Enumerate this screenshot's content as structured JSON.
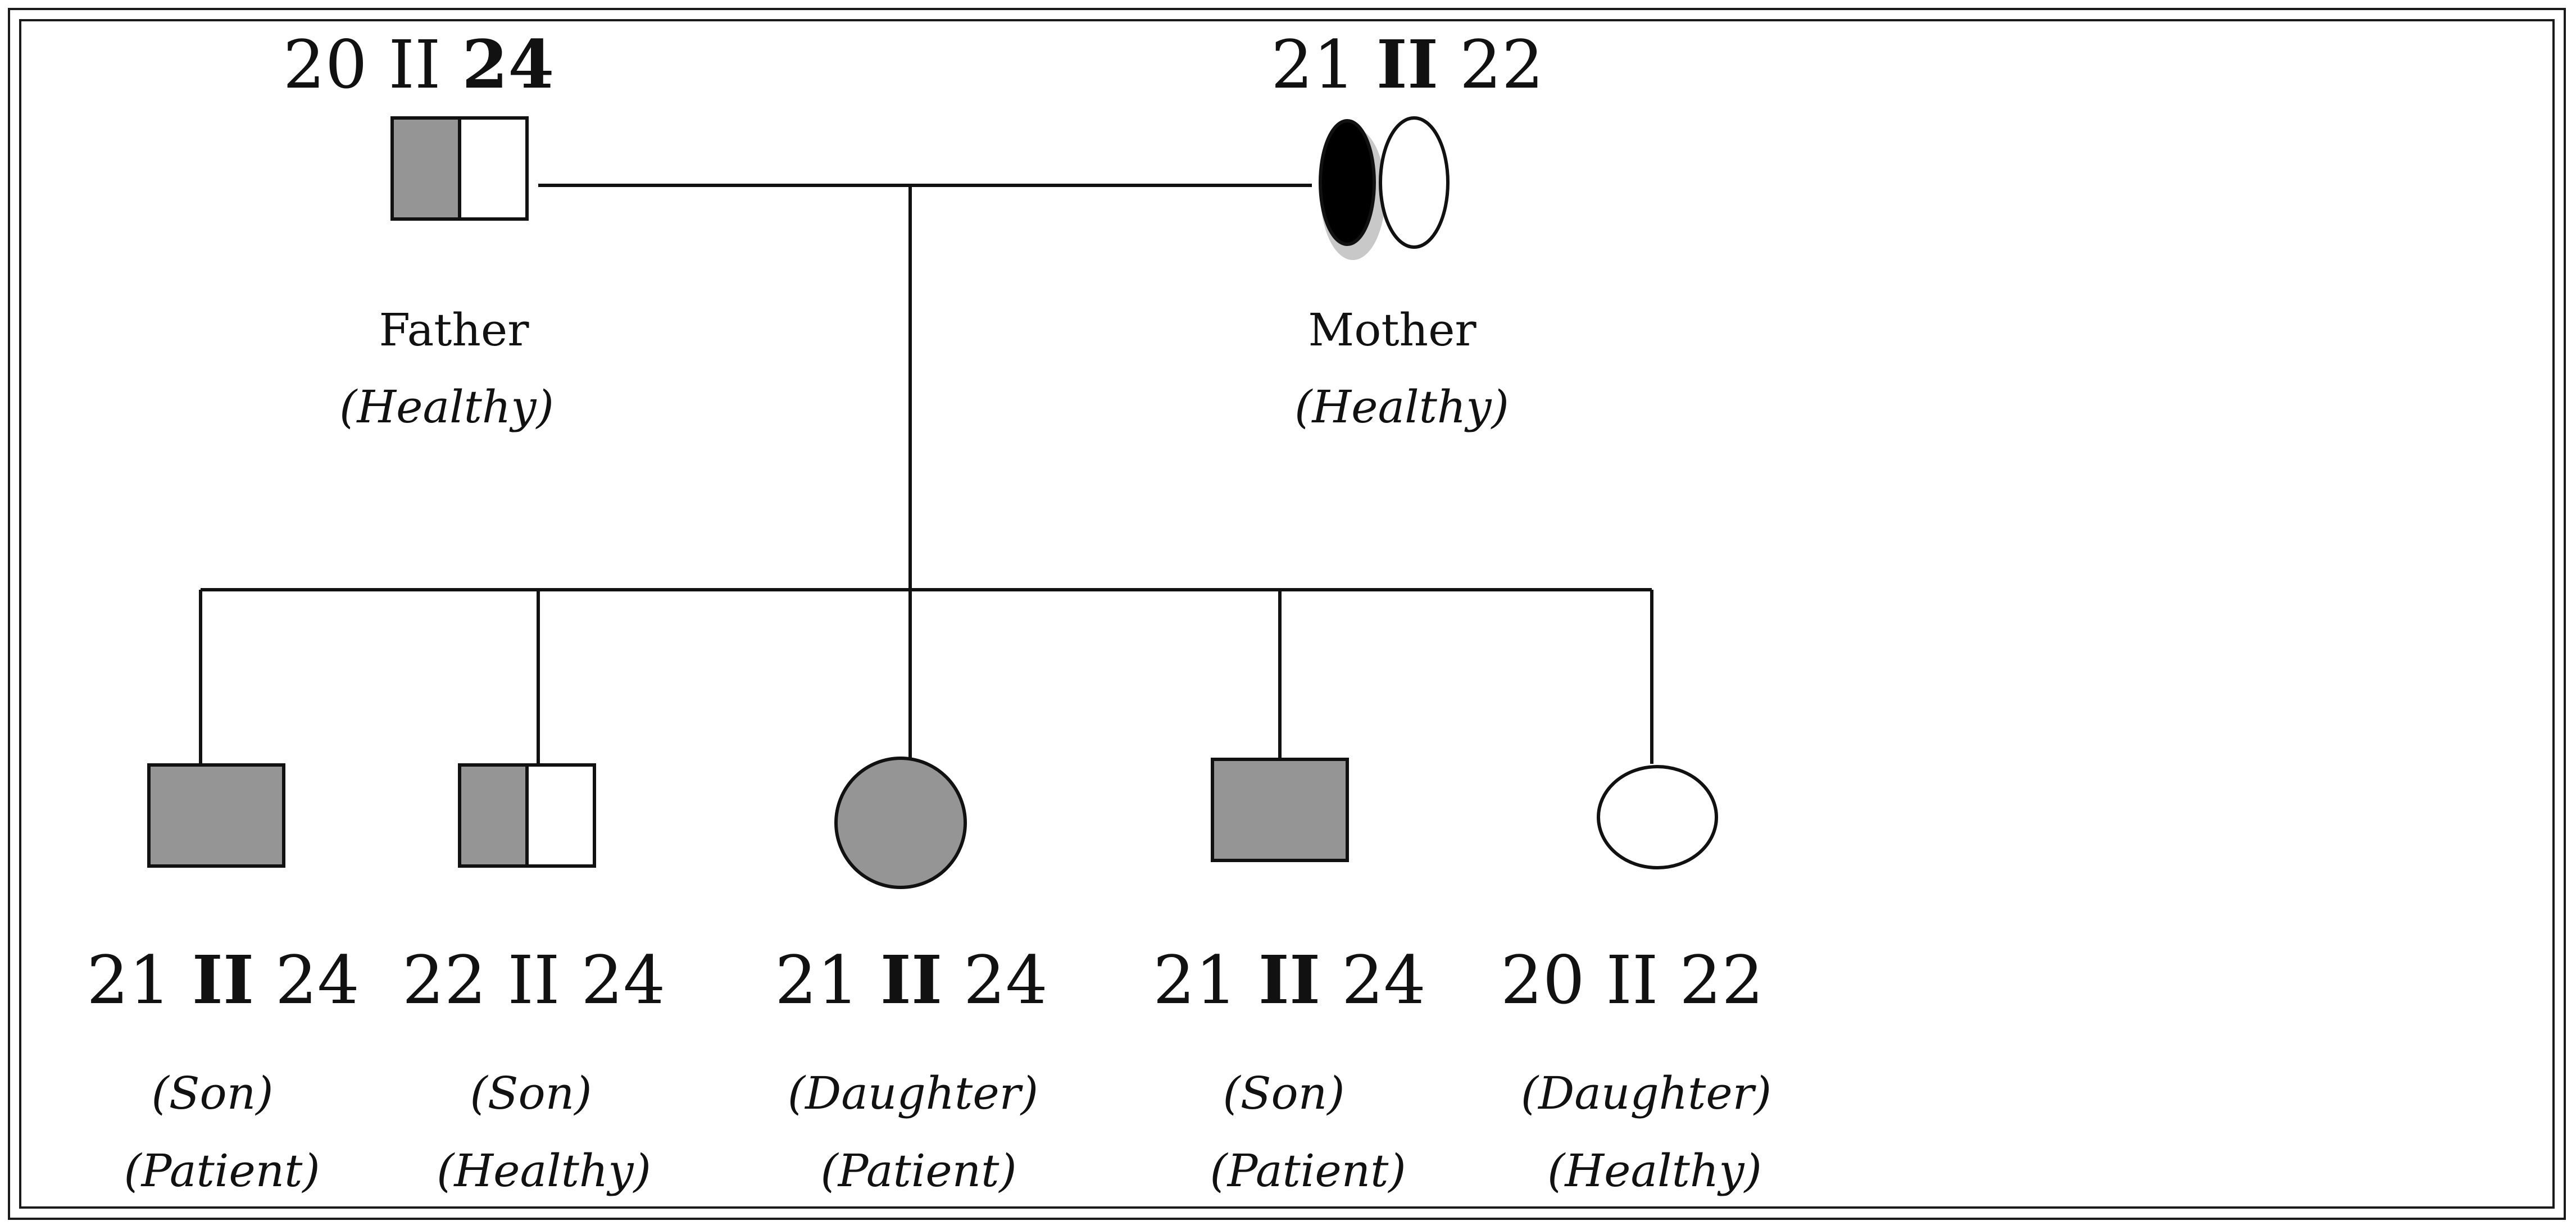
{
  "colors": {
    "affected": "#959595",
    "carrier_dark": "#000000",
    "unaffected": "#ffffff",
    "line": "#111111",
    "halo": "#c8c8c8"
  },
  "members": [
    {
      "id": "father",
      "genotype": {
        "a": "20",
        "sep": "II",
        "b": "24"
      },
      "relation": "Father",
      "status": "(Healthy)"
    },
    {
      "id": "mother",
      "genotype": {
        "a": "21",
        "sep": "II",
        "b": "22"
      },
      "relation": "Mother",
      "status": "(Healthy)"
    },
    {
      "id": "child1",
      "genotype": {
        "a": "21",
        "sep": "II",
        "b": "24"
      },
      "relation": "(Son)",
      "status": "(Patient)"
    },
    {
      "id": "child2",
      "genotype": {
        "a": "22",
        "sep": "II",
        "b": "24"
      },
      "relation": "(Son)",
      "status": "(Healthy)"
    },
    {
      "id": "child3",
      "genotype": {
        "a": "21",
        "sep": "II",
        "b": "24"
      },
      "relation": "(Daughter)",
      "status": "(Patient)"
    },
    {
      "id": "child4",
      "genotype": {
        "a": "21",
        "sep": "II",
        "b": "24"
      },
      "relation": "(Son)",
      "status": "(Patient)"
    },
    {
      "id": "child5",
      "genotype": {
        "a": "20",
        "sep": "II",
        "b": "22"
      },
      "relation": "(Daughter)",
      "status": "(Healthy)"
    }
  ]
}
